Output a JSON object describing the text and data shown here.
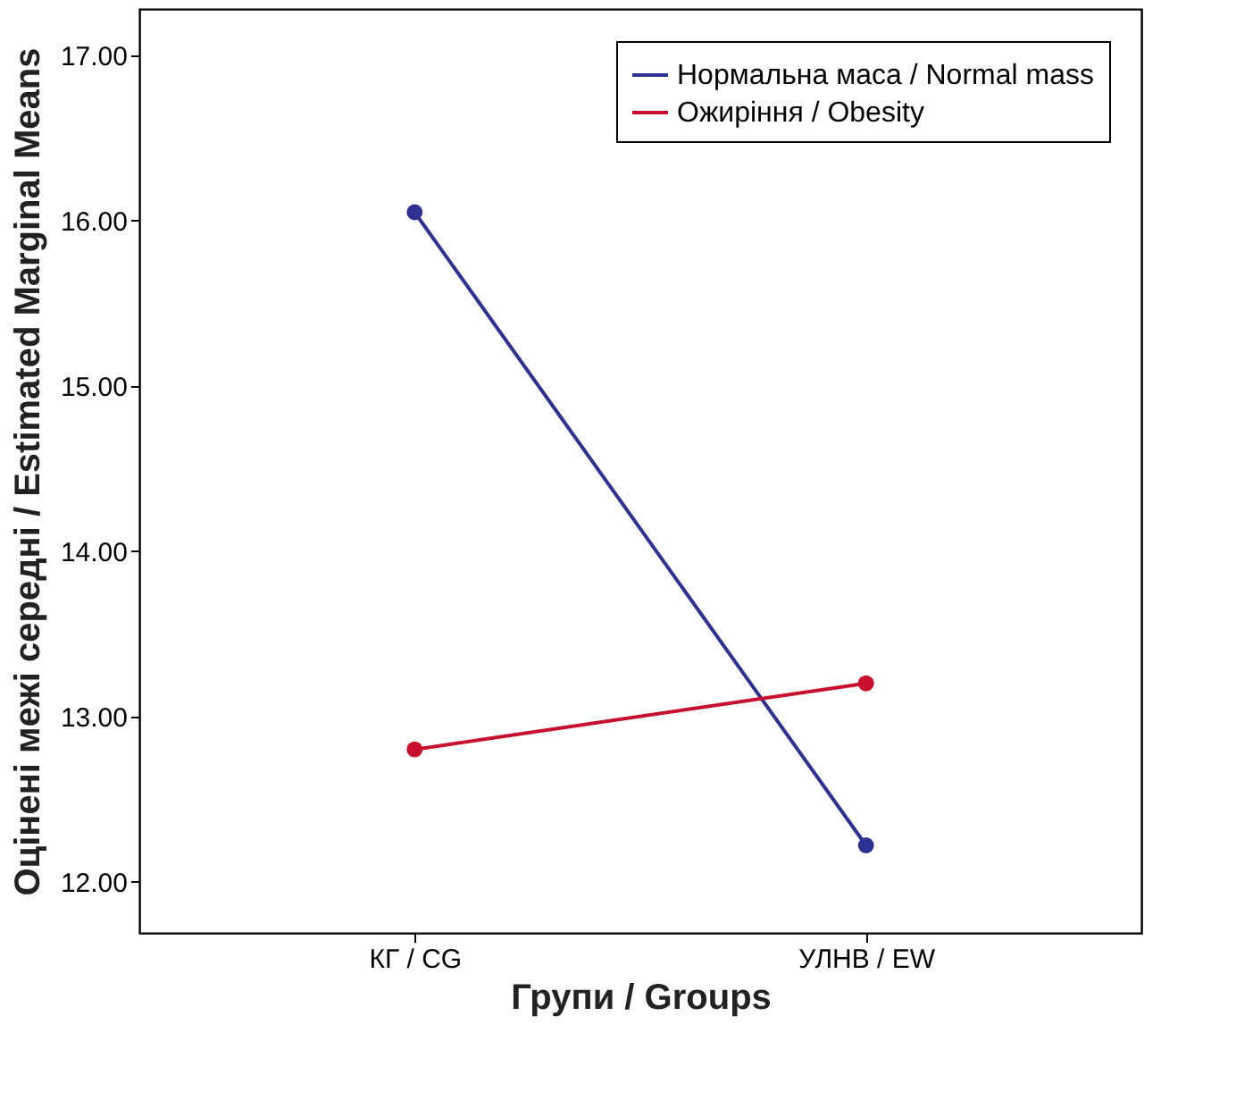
{
  "chart_data": {
    "type": "line",
    "xlabel": "Групи / Groups",
    "ylabel": "Оцінені межі середні / Estimated Marginal Means",
    "categories": [
      "КГ / CG",
      "УЛНВ / EW"
    ],
    "series": [
      {
        "name": "Нормальна маса / Normal mass",
        "color": "#2e3192",
        "values": [
          16.05,
          12.22
        ]
      },
      {
        "name": "Ожиріння / Obesity",
        "color": "#c8102e",
        "values": [
          12.8,
          13.2
        ]
      }
    ],
    "ylim": [
      11.69,
      17.28
    ],
    "yticks": [
      {
        "value": 12,
        "label": "12.00"
      },
      {
        "value": 13,
        "label": "13.00"
      },
      {
        "value": 14,
        "label": "14.00"
      },
      {
        "value": 15,
        "label": "15.00"
      },
      {
        "value": 16,
        "label": "16.00"
      },
      {
        "value": 17,
        "label": "17.00"
      }
    ],
    "grid": false,
    "legend": "top right",
    "marker": "circle",
    "line_style": "solid"
  }
}
